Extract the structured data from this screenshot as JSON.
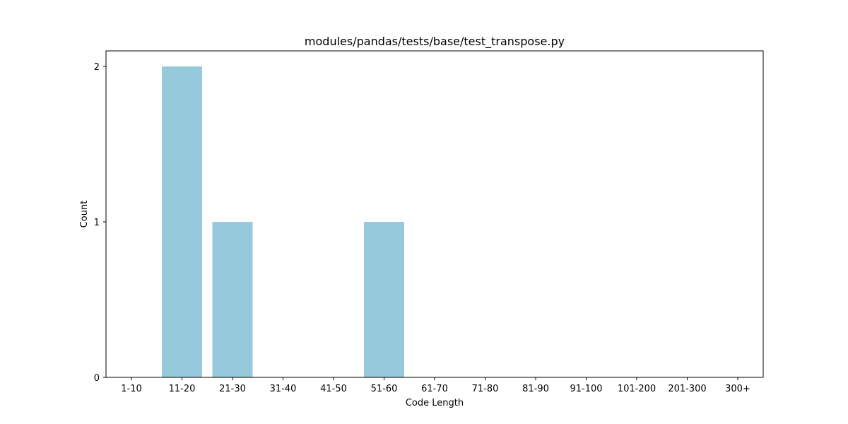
{
  "chart_data": {
    "type": "bar",
    "title": "modules/pandas/tests/base/test_transpose.py",
    "xlabel": "Code Length",
    "ylabel": "Count",
    "categories": [
      "1-10",
      "11-20",
      "21-30",
      "31-40",
      "41-50",
      "51-60",
      "61-70",
      "71-80",
      "81-90",
      "91-100",
      "101-200",
      "201-300",
      "300+"
    ],
    "values": [
      0,
      2,
      1,
      0,
      0,
      1,
      0,
      0,
      0,
      0,
      0,
      0,
      0
    ],
    "yticks": [
      0,
      1,
      2
    ],
    "ylim": [
      0,
      2.1
    ],
    "grid": false,
    "bar_color": "#96c9dc"
  }
}
